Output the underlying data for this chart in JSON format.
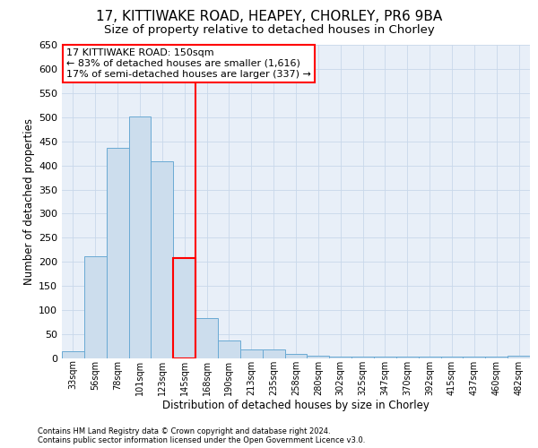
{
  "title1": "17, KITTIWAKE ROAD, HEAPEY, CHORLEY, PR6 9BA",
  "title2": "Size of property relative to detached houses in Chorley",
  "xlabel": "Distribution of detached houses by size in Chorley",
  "ylabel": "Number of detached properties",
  "footnote1": "Contains HM Land Registry data © Crown copyright and database right 2024.",
  "footnote2": "Contains public sector information licensed under the Open Government Licence v3.0.",
  "annotation_line1": "17 KITTIWAKE ROAD: 150sqm",
  "annotation_line2": "← 83% of detached houses are smaller (1,616)",
  "annotation_line3": "17% of semi-detached houses are larger (337) →",
  "bar_color": "#ccdded",
  "bar_edge_color": "#6aaad4",
  "vline_color": "red",
  "background_color": "#e8eff8",
  "categories": [
    "33sqm",
    "56sqm",
    "78sqm",
    "101sqm",
    "123sqm",
    "145sqm",
    "168sqm",
    "190sqm",
    "213sqm",
    "235sqm",
    "258sqm",
    "280sqm",
    "302sqm",
    "325sqm",
    "347sqm",
    "370sqm",
    "392sqm",
    "415sqm",
    "437sqm",
    "460sqm",
    "482sqm"
  ],
  "values": [
    15,
    212,
    436,
    502,
    408,
    208,
    84,
    38,
    18,
    18,
    10,
    5,
    3,
    3,
    3,
    3,
    3,
    3,
    3,
    3,
    5
  ],
  "ylim_max": 650,
  "yticks": [
    0,
    50,
    100,
    150,
    200,
    250,
    300,
    350,
    400,
    450,
    500,
    550,
    600,
    650
  ],
  "highlight_index": 5,
  "vline_x": 5.5,
  "grid_color": "#c8d8ea",
  "title1_fontsize": 11,
  "title2_fontsize": 9.5,
  "axis_label_fontsize": 8.5,
  "tick_fontsize": 8,
  "xtick_fontsize": 7,
  "annot_fontsize": 8,
  "footnote_fontsize": 6
}
